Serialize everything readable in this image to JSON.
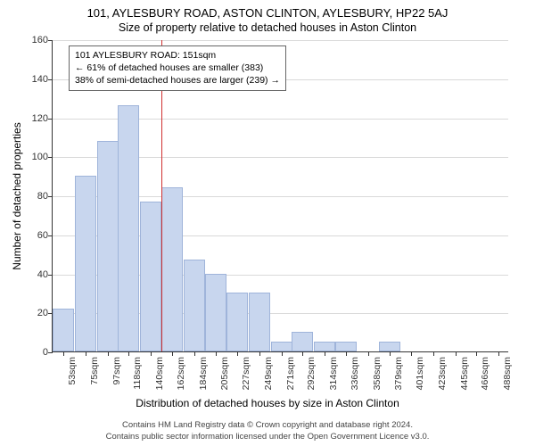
{
  "title_line1": "101, AYLESBURY ROAD, ASTON CLINTON, AYLESBURY, HP22 5AJ",
  "title_line2": "Size of property relative to detached houses in Aston Clinton",
  "ylabel": "Number of detached properties",
  "xlabel": "Distribution of detached houses by size in Aston Clinton",
  "footer_line1": "Contains HM Land Registry data © Crown copyright and database right 2024.",
  "footer_line2": "Contains public sector information licensed under the Open Government Licence v3.0.",
  "annotation": {
    "line1": "101 AYLESBURY ROAD: 151sqm",
    "line2": "← 61% of detached houses are smaller (383)",
    "line3": "38% of semi-detached houses are larger (239) →"
  },
  "chart": {
    "type": "histogram",
    "ymax": 160,
    "yticks": [
      0,
      20,
      40,
      60,
      80,
      100,
      120,
      140,
      160
    ],
    "grid_color": "#d9d9d9",
    "bar_fill": "#c8d6ee",
    "bar_stroke": "#9fb4da",
    "background": "#ffffff",
    "marker_color": "#d03030",
    "marker_value": 151,
    "xmin": 42,
    "xmax": 499,
    "bar_width_sqm": 21.5,
    "bars": [
      {
        "x": 53,
        "count": 22
      },
      {
        "x": 75,
        "count": 90
      },
      {
        "x": 97,
        "count": 108
      },
      {
        "x": 118,
        "count": 126
      },
      {
        "x": 140,
        "count": 77
      },
      {
        "x": 162,
        "count": 84
      },
      {
        "x": 184,
        "count": 47
      },
      {
        "x": 205,
        "count": 40
      },
      {
        "x": 227,
        "count": 30
      },
      {
        "x": 249,
        "count": 30
      },
      {
        "x": 271,
        "count": 5
      },
      {
        "x": 292,
        "count": 10
      },
      {
        "x": 314,
        "count": 5
      },
      {
        "x": 336,
        "count": 5
      },
      {
        "x": 358,
        "count": 0
      },
      {
        "x": 379,
        "count": 5
      },
      {
        "x": 401,
        "count": 0
      },
      {
        "x": 423,
        "count": 0
      },
      {
        "x": 445,
        "count": 0
      },
      {
        "x": 466,
        "count": 0
      },
      {
        "x": 488,
        "count": 0
      }
    ],
    "xtick_labels": [
      "53sqm",
      "75sqm",
      "97sqm",
      "118sqm",
      "140sqm",
      "162sqm",
      "184sqm",
      "205sqm",
      "227sqm",
      "249sqm",
      "271sqm",
      "292sqm",
      "314sqm",
      "336sqm",
      "358sqm",
      "379sqm",
      "401sqm",
      "423sqm",
      "445sqm",
      "466sqm",
      "488sqm"
    ],
    "tick_fontsize": 10.5,
    "label_fontsize": 12,
    "title_fontsize": 13
  }
}
